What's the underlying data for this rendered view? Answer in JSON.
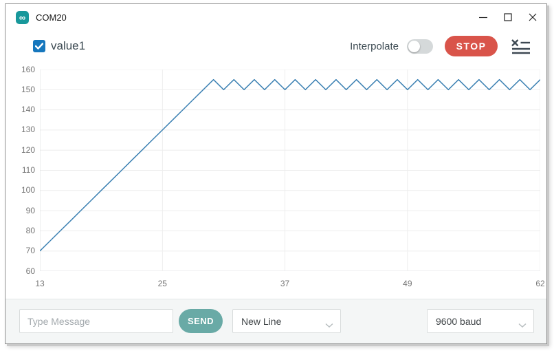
{
  "window": {
    "title": "COM20"
  },
  "toolbar": {
    "series": {
      "label": "value1",
      "checked": true
    },
    "interpolate_label": "Interpolate",
    "interpolate_on": false,
    "stop_label": "STOP"
  },
  "chart_data": {
    "type": "line",
    "title": "",
    "xlabel": "",
    "ylabel": "",
    "xlim": [
      13,
      62
    ],
    "ylim": [
      60,
      160
    ],
    "xticks": [
      13,
      25,
      37,
      49,
      62
    ],
    "yticks": [
      60,
      70,
      80,
      90,
      100,
      110,
      120,
      130,
      140,
      150,
      160
    ],
    "grid": true,
    "legend_position": "top-left",
    "series": [
      {
        "name": "value1",
        "color": "#3b80b2",
        "x": [
          13,
          14,
          15,
          16,
          17,
          18,
          19,
          20,
          21,
          22,
          23,
          24,
          25,
          26,
          27,
          28,
          29,
          30,
          31,
          32,
          33,
          34,
          35,
          36,
          37,
          38,
          39,
          40,
          41,
          42,
          43,
          44,
          45,
          46,
          47,
          48,
          49,
          50,
          51,
          52,
          53,
          54,
          55,
          56,
          57,
          58,
          59,
          60,
          61,
          62
        ],
        "values": [
          70,
          75,
          80,
          85,
          90,
          95,
          100,
          105,
          110,
          115,
          120,
          125,
          130,
          135,
          140,
          145,
          150,
          155,
          150,
          155,
          150,
          155,
          150,
          155,
          150,
          155,
          150,
          155,
          150,
          155,
          150,
          155,
          150,
          155,
          150,
          155,
          150,
          155,
          150,
          155,
          150,
          155,
          150,
          155,
          150,
          155,
          150,
          155,
          150,
          155
        ]
      }
    ]
  },
  "footer": {
    "message_placeholder": "Type Message",
    "send_label": "SEND",
    "line_ending_selected": "New Line",
    "baud_rate_selected": "9600 baud"
  },
  "colors": {
    "accent_teal": "#18989b",
    "checkbox_blue": "#1677bd",
    "stop_red": "#d9544a",
    "send_teal": "#69aaa6",
    "line_blue": "#3b80b2"
  }
}
